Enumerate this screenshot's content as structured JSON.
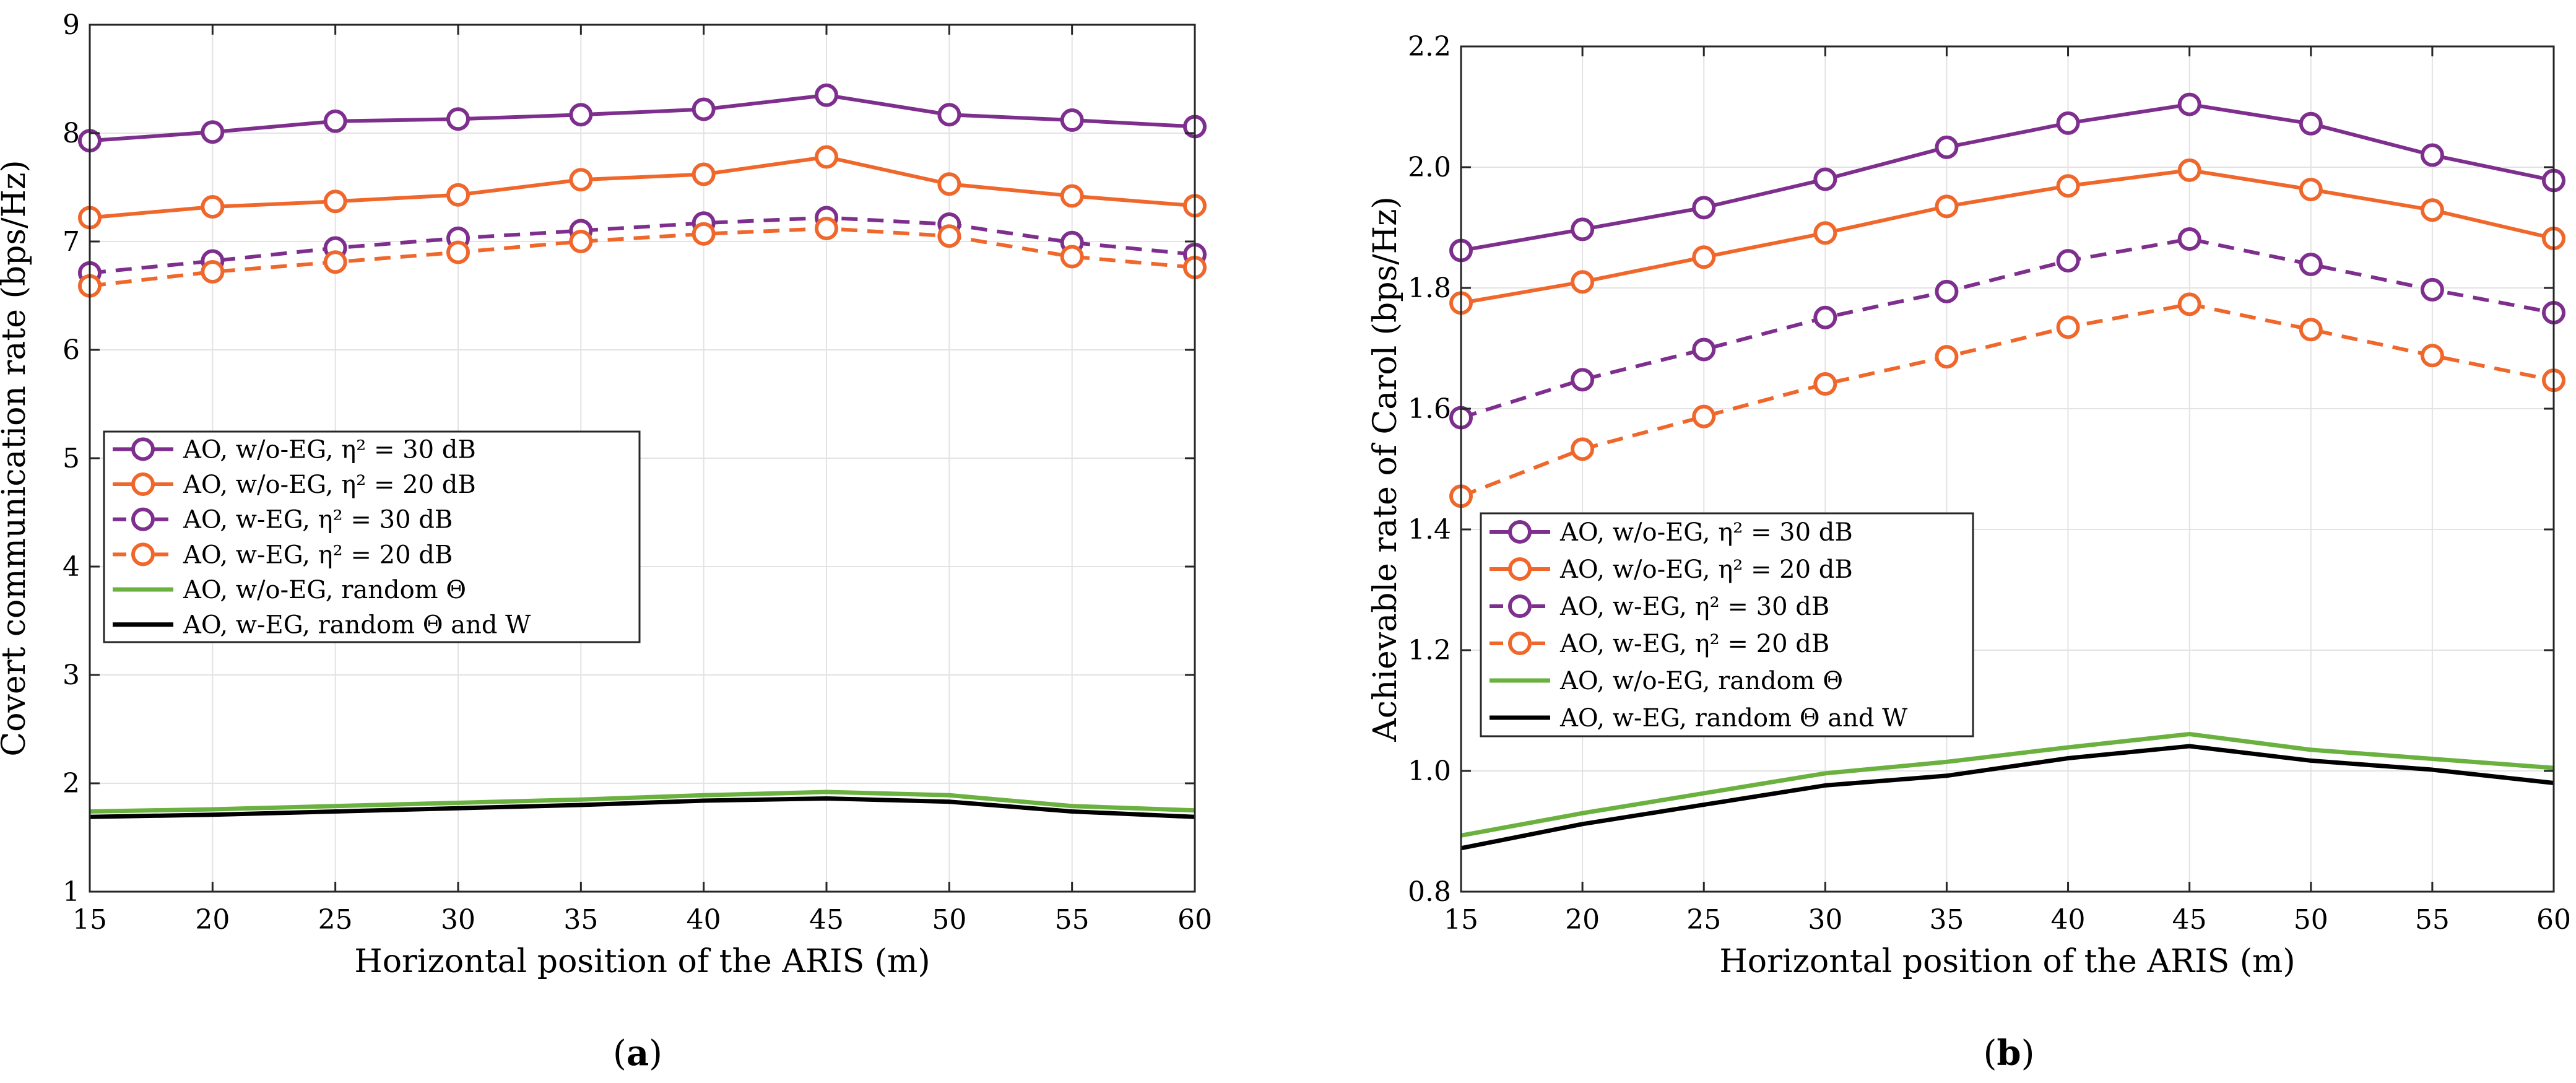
{
  "chart_data": [
    {
      "type": "line",
      "panel": "(a)",
      "caption_letter": "a",
      "xlabel": "Horizontal position of the ARIS (m)",
      "ylabel": "Covert communication rate (bps/Hz)",
      "x": [
        15,
        20,
        25,
        30,
        35,
        40,
        45,
        50,
        55,
        60
      ],
      "xlim": [
        15,
        60
      ],
      "ylim": [
        1,
        9
      ],
      "xticks": [
        15,
        20,
        25,
        30,
        35,
        40,
        45,
        50,
        55,
        60
      ],
      "yticks": [
        1,
        2,
        3,
        4,
        5,
        6,
        7,
        8,
        9
      ],
      "ytick_labels": [
        "1",
        "2",
        "3",
        "4",
        "5",
        "6",
        "7",
        "8",
        "9"
      ],
      "grid": true,
      "legend_position": "middle-left",
      "series": [
        {
          "name": "AO, w/o-EG, η² = 30 dB",
          "color": "#7E2F8E",
          "dash": false,
          "marker": "circle",
          "values": [
            7.93,
            8.01,
            8.11,
            8.13,
            8.17,
            8.22,
            8.35,
            8.17,
            8.12,
            8.06
          ]
        },
        {
          "name": "AO, w/o-EG, η² = 20 dB",
          "color": "#F0672B",
          "dash": false,
          "marker": "circle",
          "values": [
            7.22,
            7.32,
            7.37,
            7.43,
            7.57,
            7.62,
            7.78,
            7.53,
            7.42,
            7.33
          ]
        },
        {
          "name": "AO, w-EG, η² = 30 dB",
          "color": "#7E2F8E",
          "dash": true,
          "marker": "circle",
          "values": [
            6.71,
            6.82,
            6.94,
            7.03,
            7.1,
            7.17,
            7.22,
            7.16,
            6.99,
            6.88
          ]
        },
        {
          "name": "AO, w-EG, η² = 20 dB",
          "color": "#F0672B",
          "dash": true,
          "marker": "circle",
          "values": [
            6.59,
            6.72,
            6.81,
            6.9,
            7.0,
            7.07,
            7.12,
            7.05,
            6.86,
            6.76
          ]
        },
        {
          "name": "AO, w/o-EG, random Θ",
          "color": "#6BB140",
          "dash": false,
          "marker": "none",
          "values": [
            1.74,
            1.76,
            1.79,
            1.82,
            1.85,
            1.89,
            1.92,
            1.89,
            1.79,
            1.75
          ]
        },
        {
          "name": "AO, w-EG, random Θ and W",
          "color": "#000000",
          "dash": false,
          "marker": "none",
          "values": [
            1.69,
            1.71,
            1.74,
            1.77,
            1.8,
            1.84,
            1.86,
            1.83,
            1.74,
            1.69
          ]
        }
      ]
    },
    {
      "type": "line",
      "panel": "(b)",
      "caption_letter": "b",
      "xlabel": "Horizontal position of the ARIS (m)",
      "ylabel": "Achievable rate of Carol (bps/Hz)",
      "x": [
        15,
        20,
        25,
        30,
        35,
        40,
        45,
        50,
        55,
        60
      ],
      "xlim": [
        15,
        60
      ],
      "ylim": [
        0.8,
        2.2
      ],
      "xticks": [
        15,
        20,
        25,
        30,
        35,
        40,
        45,
        50,
        55,
        60
      ],
      "yticks": [
        0.8,
        1.0,
        1.2,
        1.4,
        1.6,
        1.8,
        2.0,
        2.2
      ],
      "ytick_labels": [
        "0.8",
        "1.0",
        "1.2",
        "1.4",
        "1.6",
        "1.8",
        "2.0",
        "2.2"
      ],
      "grid": true,
      "legend_position": "lower-left",
      "series": [
        {
          "name": "AO, w/o-EG, η² = 30 dB",
          "color": "#7E2F8E",
          "dash": false,
          "marker": "circle",
          "values": [
            1.862,
            1.897,
            1.933,
            1.98,
            2.033,
            2.073,
            2.104,
            2.072,
            2.02,
            1.978
          ]
        },
        {
          "name": "AO, w/o-EG, η² = 20 dB",
          "color": "#F0672B",
          "dash": false,
          "marker": "circle",
          "values": [
            1.775,
            1.81,
            1.851,
            1.891,
            1.935,
            1.969,
            1.995,
            1.963,
            1.929,
            1.882
          ]
        },
        {
          "name": "AO, w-EG, η² = 30 dB",
          "color": "#7E2F8E",
          "dash": true,
          "marker": "circle",
          "values": [
            1.585,
            1.648,
            1.698,
            1.751,
            1.794,
            1.845,
            1.881,
            1.839,
            1.797,
            1.759
          ]
        },
        {
          "name": "AO, w-EG, η² = 20 dB",
          "color": "#F0672B",
          "dash": true,
          "marker": "circle",
          "values": [
            1.455,
            1.533,
            1.587,
            1.641,
            1.686,
            1.735,
            1.773,
            1.731,
            1.688,
            1.647
          ]
        },
        {
          "name": "AO, w/o-EG, random Θ",
          "color": "#6BB140",
          "dash": false,
          "marker": "none",
          "values": [
            0.893,
            0.93,
            0.963,
            0.996,
            1.015,
            1.039,
            1.061,
            1.035,
            1.02,
            1.005
          ]
        },
        {
          "name": "AO, w-EG, random Θ and W",
          "color": "#000000",
          "dash": false,
          "marker": "none",
          "values": [
            0.872,
            0.912,
            0.944,
            0.976,
            0.992,
            1.021,
            1.041,
            1.017,
            1.002,
            0.98
          ]
        }
      ]
    }
  ]
}
